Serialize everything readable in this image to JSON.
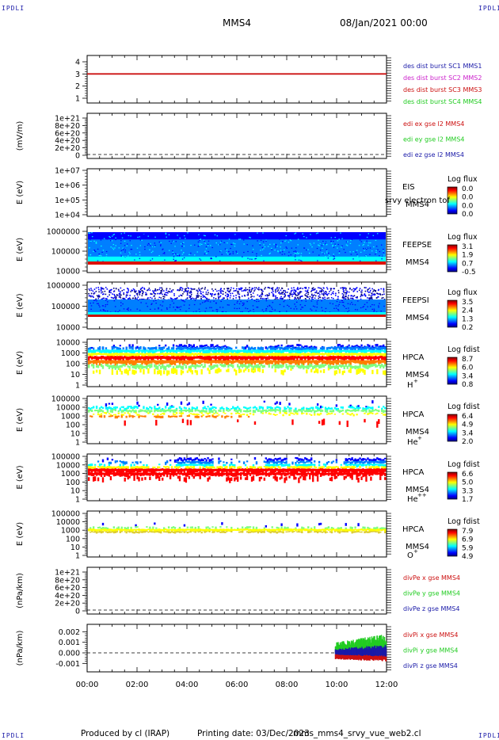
{
  "header": {
    "title": "MMS4",
    "datetime": "08/Jan/2021 00:00",
    "corner_label": "IPDLI"
  },
  "footer": {
    "produced_by": "Produced by cl (IRAP)",
    "printing_date": "Printing date: 03/Dec/2023",
    "script_name": "mms_mms4_srvy_vue_web2.cl"
  },
  "colors": {
    "blue": "#1a1aa8",
    "magenta": "#cc22cc",
    "red": "#cc1111",
    "green": "#22cc22"
  },
  "chart_data": [
    {
      "type": "line",
      "panel": "burst",
      "ylabel": "",
      "ytick_labels": [
        "1",
        "2",
        "3",
        "4"
      ],
      "ylim": [
        0.7,
        4.3
      ],
      "legend": [
        "des dist burst SC1 MMS1",
        "des dist burst SC2 MMS2",
        "des dist burst SC3 MMS3",
        "des dist burst SC4 MMS4"
      ],
      "series": [
        {
          "name": "des dist burst SC3 MMS3",
          "x": [
            0,
            12
          ],
          "y": [
            3,
            3
          ]
        }
      ]
    },
    {
      "type": "line",
      "panel": "edi",
      "ylabel": "(mV/m)",
      "ytick_labels": [
        "0",
        "2e+20",
        "4e+20",
        "6e+20",
        "8e+20",
        "1e+21"
      ],
      "ylim": [
        -3e+20,
        1.1e+21
      ],
      "legend": [
        "edi ex gse l2 MMS4",
        "edi ey gse l2 MMS4",
        "edi ez gse l2 MMS4"
      ],
      "zero_line": true
    },
    {
      "type": "heatmap",
      "panel": "EIS",
      "ylabel": "E (eV)",
      "ytick_labels": [
        "1e+04",
        "1e+05",
        "1e+06",
        "1e+07"
      ],
      "label": "EIS",
      "overlap_label": "srvy electron tof",
      "sc_label": "MMS4",
      "colorbar": {
        "title": "Log flux",
        "ticks": [
          "0.0",
          "0.0",
          "0.0",
          "0.0"
        ]
      }
    },
    {
      "type": "heatmap",
      "panel": "FEEPSE",
      "ylabel": "E (eV)",
      "ytick_labels": [
        "10000",
        "100000",
        "1000000"
      ],
      "label": "FEEPSE",
      "sc_label": "MMS4",
      "colorbar": {
        "title": "Log flux",
        "ticks": [
          "3.1",
          "1.9",
          "0.7",
          "-0.5"
        ]
      }
    },
    {
      "type": "heatmap",
      "panel": "FEEPSI",
      "ylabel": "E (eV)",
      "ytick_labels": [
        "10000",
        "100000",
        "1000000"
      ],
      "label": "FEEPSI",
      "sc_label": "MMS4",
      "colorbar": {
        "title": "Log flux",
        "ticks": [
          "3.5",
          "2.4",
          "1.3",
          "0.2"
        ]
      }
    },
    {
      "type": "heatmap",
      "panel": "HPCA_H",
      "ylabel": "E (eV)",
      "ytick_labels": [
        "1",
        "10",
        "100",
        "1000",
        "10000"
      ],
      "label": "HPCA",
      "sc_label": "MMS4",
      "ion": "H",
      "ion_sup": "+",
      "colorbar": {
        "title": "Log fdist",
        "ticks": [
          "8.7",
          "6.0",
          "3.4",
          "0.8"
        ]
      }
    },
    {
      "type": "heatmap",
      "panel": "HPCA_He",
      "ylabel": "E (eV)",
      "ytick_labels": [
        "1",
        "10",
        "100",
        "1000",
        "10000",
        "100000"
      ],
      "label": "HPCA",
      "sc_label": "MMS4",
      "ion": "He",
      "ion_sup": "+",
      "colorbar": {
        "title": "Log fdist",
        "ticks": [
          "6.4",
          "4.9",
          "3.4",
          "2.0"
        ]
      }
    },
    {
      "type": "heatmap",
      "panel": "HPCA_He2",
      "ylabel": "E (eV)",
      "ytick_labels": [
        "1",
        "10",
        "100",
        "1000",
        "10000",
        "100000"
      ],
      "label": "HPCA",
      "sc_label": "MMS4",
      "ion": "He",
      "ion_sup": "++",
      "colorbar": {
        "title": "Log fdist",
        "ticks": [
          "6.6",
          "5.0",
          "3.3",
          "1.7"
        ]
      }
    },
    {
      "type": "heatmap",
      "panel": "HPCA_O",
      "ylabel": "E (eV)",
      "ytick_labels": [
        "1",
        "10",
        "100",
        "1000",
        "10000",
        "100000"
      ],
      "label": "HPCA",
      "sc_label": "MMS4",
      "ion": "O",
      "ion_sup": "+",
      "colorbar": {
        "title": "Log fdist",
        "ticks": [
          "7.9",
          "6.9",
          "5.9",
          "4.9"
        ]
      }
    },
    {
      "type": "line",
      "panel": "divPe",
      "ylabel": "(nPa/km)",
      "ytick_labels": [
        "0",
        "2e+20",
        "4e+20",
        "6e+20",
        "8e+20",
        "1e+21"
      ],
      "ylim": [
        -3e+20,
        1.1e+21
      ],
      "legend": [
        "divPe x gse MMS4",
        "divPe y gse MMS4",
        "divPe z gse MMS4"
      ],
      "zero_line": true
    },
    {
      "type": "line",
      "panel": "divPi",
      "ylabel": "(nPa/km)",
      "ytick_labels": [
        "-0.001",
        "0.000",
        "0.001",
        "0.002"
      ],
      "ylim": [
        -0.0018,
        0.0027
      ],
      "legend": [
        "divPi x gse MMS4",
        "divPi y gse MMS4",
        "divPi z gse MMS4"
      ],
      "zero_line": true,
      "active_interval_hours": [
        9.95,
        12
      ]
    }
  ],
  "x_axis": {
    "range_hours": [
      0,
      12
    ],
    "tick_labels": [
      "00:00",
      "02:00",
      "04:00",
      "06:00",
      "08:00",
      "10:00",
      "12:00"
    ]
  }
}
